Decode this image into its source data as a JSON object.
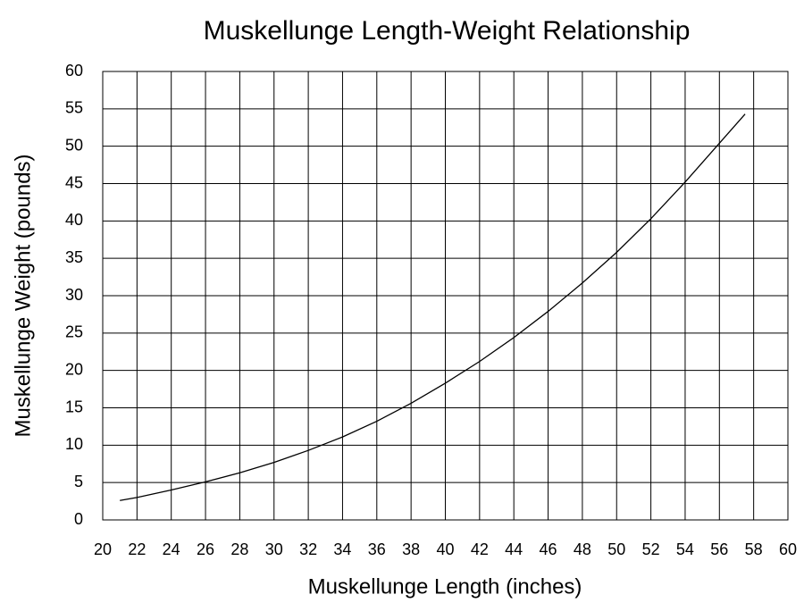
{
  "chart_data": {
    "type": "line",
    "title": "Muskellunge Length-Weight Relationship",
    "x_label": "Muskellunge Length (inches)",
    "y_label": "Muskellunge Weight (pounds)",
    "x": [
      21,
      22,
      24,
      26,
      28,
      30,
      32,
      34,
      36,
      38,
      40,
      42,
      44,
      46,
      48,
      50,
      52,
      54,
      56,
      57.5
    ],
    "series": [
      {
        "color": "#000000",
        "values": [
          2.6,
          3.0,
          4.0,
          5.1,
          6.3,
          7.7,
          9.3,
          11.1,
          13.2,
          15.6,
          18.3,
          21.2,
          24.4,
          27.9,
          31.7,
          35.8,
          40.3,
          45.2,
          50.4,
          54.3
        ]
      }
    ],
    "xlim": [
      20,
      60
    ],
    "ylim": [
      0,
      60
    ],
    "xticks": [
      20,
      22,
      24,
      26,
      28,
      30,
      32,
      34,
      36,
      38,
      40,
      42,
      44,
      46,
      48,
      50,
      52,
      54,
      56,
      58,
      60
    ],
    "yticks": [
      0,
      5,
      10,
      15,
      20,
      25,
      30,
      35,
      40,
      45,
      50,
      55,
      60
    ],
    "grid": true
  }
}
